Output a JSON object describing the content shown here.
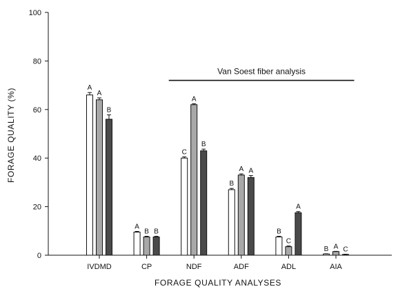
{
  "chart_data": {
    "type": "bar",
    "xlabel": "FORAGE QUALITY ANALYSES",
    "ylabel": "FORAGE QUALITY (%)",
    "ylim": [
      0,
      100
    ],
    "yticks": [
      "0",
      "20",
      "40",
      "60",
      "80",
      "100"
    ],
    "categories": [
      "IVDMD",
      "CP",
      "NDF",
      "ADF",
      "ADL",
      "AIA"
    ],
    "series": [
      {
        "color": "#ffffff",
        "values": [
          66,
          9.5,
          40,
          27,
          7.5,
          0.5
        ],
        "errors": [
          1.0,
          0.3,
          0.5,
          0.5,
          0.3,
          0.1
        ],
        "labels": [
          "A",
          "A",
          "C",
          "B",
          "B",
          "B"
        ]
      },
      {
        "color": "#a8a8a8",
        "values": [
          64,
          7.5,
          62,
          33,
          3.5,
          1.5
        ],
        "errors": [
          0.8,
          0.3,
          0.4,
          0.5,
          0.3,
          0.1
        ],
        "labels": [
          "A",
          "B",
          "A",
          "A",
          "C",
          "A"
        ]
      },
      {
        "color": "#4a4a4a",
        "values": [
          56,
          7.5,
          43,
          32,
          17.5,
          0.3
        ],
        "errors": [
          1.8,
          0.3,
          0.7,
          0.8,
          0.5,
          0.1
        ],
        "labels": [
          "B",
          "B",
          "B",
          "A",
          "A",
          "C"
        ]
      }
    ],
    "annotation": {
      "text": "Van Soest fiber analysis",
      "y": 72,
      "from_category": "NDF",
      "to_category": "AIA"
    },
    "grid": false,
    "legend": "none"
  }
}
